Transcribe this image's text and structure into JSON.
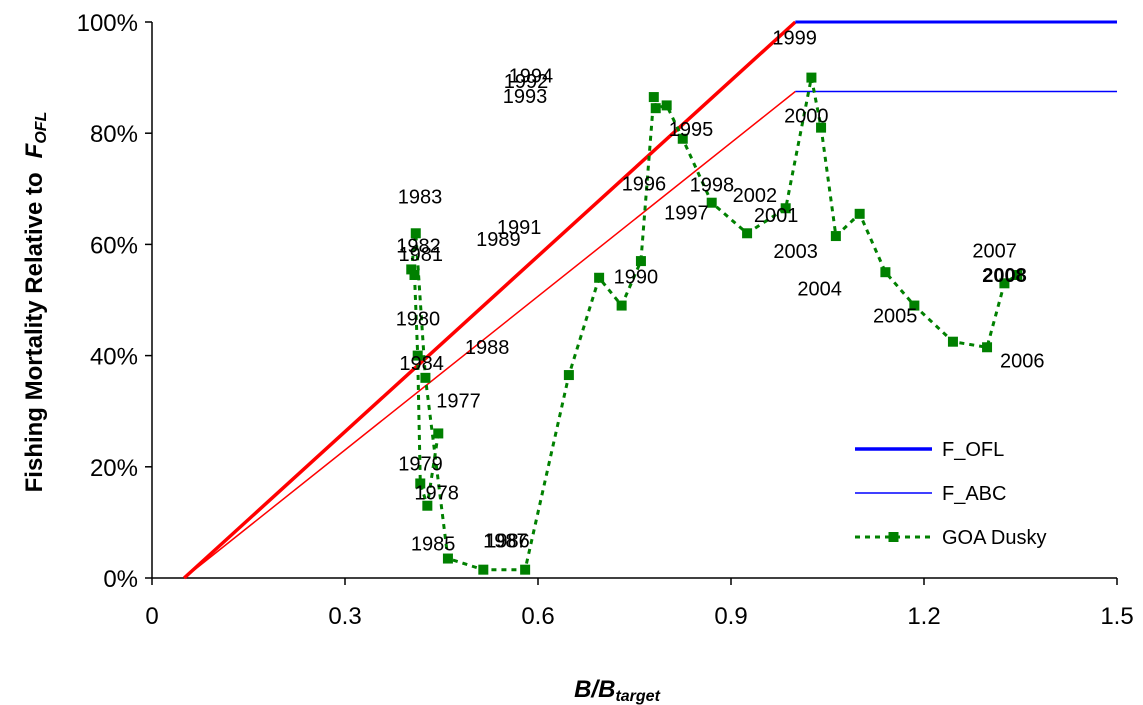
{
  "chart_data": {
    "type": "line",
    "xlabel": {
      "main": "B/B",
      "sub": "target"
    },
    "ylabel": {
      "main": "Fishing Mortality Relative to",
      "italic": "F",
      "sub": "OFL"
    },
    "xlim": [
      0,
      1.5
    ],
    "ylim": [
      0,
      1.0
    ],
    "x_ticks": [
      {
        "value": 0,
        "label": "0"
      },
      {
        "value": 0.3,
        "label": "0.3"
      },
      {
        "value": 0.6,
        "label": "0.6"
      },
      {
        "value": 0.9,
        "label": "0.9"
      },
      {
        "value": 1.2,
        "label": "1.2"
      },
      {
        "value": 1.5,
        "label": "1.5"
      }
    ],
    "y_ticks": [
      {
        "value": 0,
        "label": "0%"
      },
      {
        "value": 0.2,
        "label": "20%"
      },
      {
        "value": 0.4,
        "label": "40%"
      },
      {
        "value": 0.6,
        "label": "60%"
      },
      {
        "value": 0.8,
        "label": "80%"
      },
      {
        "value": 1.0,
        "label": "100%"
      }
    ],
    "grid": false,
    "legend_position": "bottom-right",
    "legend": [
      {
        "key": "F_OFL",
        "label": "F_OFL"
      },
      {
        "key": "F_ABC",
        "label": "F_ABC"
      },
      {
        "key": "GOA",
        "label": "GOA Dusky"
      }
    ],
    "control_rules": [
      {
        "name": "F_OFL",
        "points": [
          [
            0.05,
            0
          ],
          [
            1.0,
            1.0
          ],
          [
            1.5,
            1.0
          ]
        ]
      },
      {
        "name": "F_ABC",
        "points": [
          [
            0.05,
            0
          ],
          [
            1.0,
            0.875
          ],
          [
            1.5,
            0.875
          ]
        ]
      }
    ],
    "series": [
      {
        "name": "GOA Dusky",
        "points": [
          {
            "label": "1977",
            "x": 0.445,
            "y": 0.26
          },
          {
            "label": "1978",
            "x": 0.428,
            "y": 0.13
          },
          {
            "label": "1979",
            "x": 0.417,
            "y": 0.17
          },
          {
            "label": "1980",
            "x": 0.413,
            "y": 0.4
          },
          {
            "label": "1981",
            "x": 0.408,
            "y": 0.545
          },
          {
            "label": "1982",
            "x": 0.403,
            "y": 0.555
          },
          {
            "label": "1983",
            "x": 0.41,
            "y": 0.62
          },
          {
            "label": "1984",
            "x": 0.425,
            "y": 0.36
          },
          {
            "label": "1985",
            "x": 0.46,
            "y": 0.035
          },
          {
            "label": "1986",
            "x": 0.515,
            "y": 0.015
          },
          {
            "label": "1987",
            "x": 0.58,
            "y": 0.015
          },
          {
            "label": "1988",
            "x": 0.648,
            "y": 0.365
          },
          {
            "label": "1989",
            "x": 0.695,
            "y": 0.54
          },
          {
            "label": "1990",
            "x": 0.73,
            "y": 0.49
          },
          {
            "label": "1991",
            "x": 0.76,
            "y": 0.57
          },
          {
            "label": "1992",
            "x": 0.78,
            "y": 0.865
          },
          {
            "label": "1993",
            "x": 0.783,
            "y": 0.845
          },
          {
            "label": "1994",
            "x": 0.8,
            "y": 0.85
          },
          {
            "label": "1995",
            "x": 0.825,
            "y": 0.79
          },
          {
            "label": "1996",
            "x": 0.87,
            "y": 0.675
          },
          {
            "label": "1997",
            "x": 0.925,
            "y": 0.62
          },
          {
            "label": "1998",
            "x": 0.985,
            "y": 0.665
          },
          {
            "label": "1999",
            "x": 1.025,
            "y": 0.9
          },
          {
            "label": "2000",
            "x": 1.04,
            "y": 0.81
          },
          {
            "label": "2001",
            "x": 1.063,
            "y": 0.615
          },
          {
            "label": "2002",
            "x": 1.1,
            "y": 0.655
          },
          {
            "label": "2003",
            "x": 1.14,
            "y": 0.55
          },
          {
            "label": "2004",
            "x": 1.185,
            "y": 0.49
          },
          {
            "label": "2005",
            "x": 1.245,
            "y": 0.425
          },
          {
            "label": "2006",
            "x": 1.298,
            "y": 0.415
          },
          {
            "label": "2007",
            "x": 1.325,
            "y": 0.53
          },
          {
            "label": "2008",
            "x": 1.345,
            "y": 0.545
          }
        ]
      }
    ],
    "colors": {
      "F_OFL_line": "#ff0000",
      "F_OFL_extension": "#0000ff",
      "F_ABC_line": "#ff0000",
      "F_ABC_extension": "#0000ff",
      "GOA": "#008000",
      "axis": "#000000"
    }
  }
}
